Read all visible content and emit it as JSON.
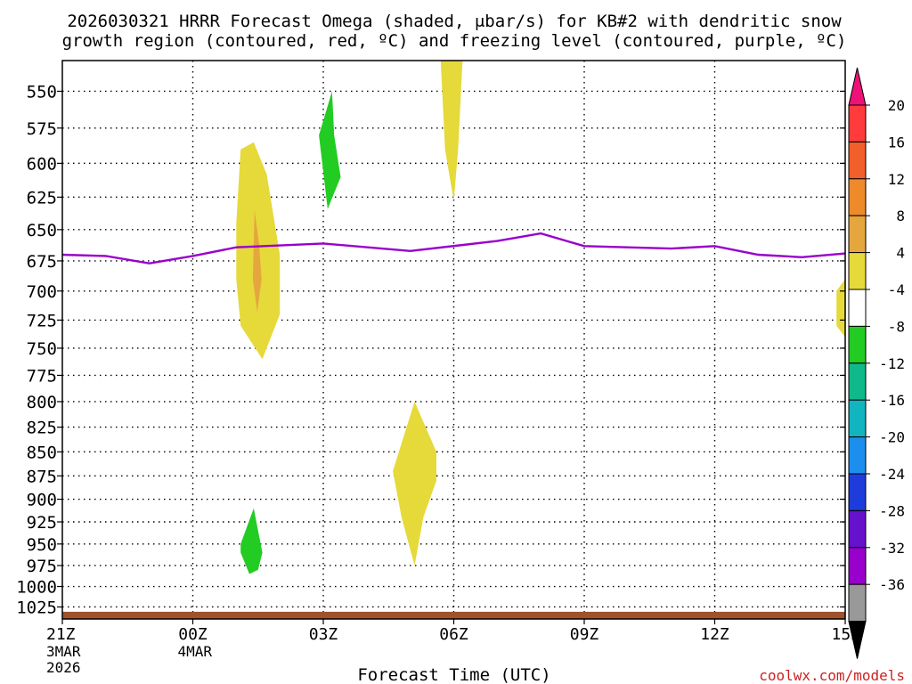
{
  "chart_data": {
    "type": "contour",
    "title_line1": "2026030321 HRRR Forecast Omega (shaded, μbar/s) for KB#2 with dendritic snow",
    "title_line2": "growth region (contoured, red, ºC) and freezing level (contoured, purple, ºC)",
    "xlabel": "Forecast Time (UTC)",
    "watermark": "coolwx.com/models",
    "x_range_hours": [
      0,
      18
    ],
    "y_range_mb": [
      530,
      1040
    ],
    "x_ticks": [
      {
        "hour": 0,
        "label": "21Z",
        "sub1": "3MAR",
        "sub2": "2026"
      },
      {
        "hour": 3,
        "label": "00Z",
        "sub1": "4MAR",
        "sub2": ""
      },
      {
        "hour": 6,
        "label": "03Z",
        "sub1": "",
        "sub2": ""
      },
      {
        "hour": 9,
        "label": "06Z",
        "sub1": "",
        "sub2": ""
      },
      {
        "hour": 12,
        "label": "09Z",
        "sub1": "",
        "sub2": ""
      },
      {
        "hour": 15,
        "label": "12Z",
        "sub1": "",
        "sub2": ""
      },
      {
        "hour": 18,
        "label": "15Z",
        "sub1": "",
        "sub2": ""
      }
    ],
    "y_ticks": [
      {
        "mb": 550,
        "label": "550"
      },
      {
        "mb": 575,
        "label": "575"
      },
      {
        "mb": 600,
        "label": "600"
      },
      {
        "mb": 625,
        "label": "625"
      },
      {
        "mb": 650,
        "label": "650"
      },
      {
        "mb": 675,
        "label": "675"
      },
      {
        "mb": 700,
        "label": "700"
      },
      {
        "mb": 725,
        "label": "725"
      },
      {
        "mb": 750,
        "label": "750"
      },
      {
        "mb": 775,
        "label": "775"
      },
      {
        "mb": 800,
        "label": "800"
      },
      {
        "mb": 825,
        "label": "825"
      },
      {
        "mb": 850,
        "label": "850"
      },
      {
        "mb": 875,
        "label": "875"
      },
      {
        "mb": 900,
        "label": "900"
      },
      {
        "mb": 925,
        "label": "925"
      },
      {
        "mb": 950,
        "label": "950"
      },
      {
        "mb": 975,
        "label": "975"
      },
      {
        "mb": 1000,
        "label": "1000"
      },
      {
        "mb": 1025,
        "label": "1025"
      }
    ],
    "freezing_level": {
      "color": "#9900cc",
      "points": [
        [
          0,
          670
        ],
        [
          1,
          671
        ],
        [
          2,
          677
        ],
        [
          3,
          671
        ],
        [
          4,
          664
        ],
        [
          6,
          661
        ],
        [
          8,
          667
        ],
        [
          10,
          659
        ],
        [
          11,
          653
        ],
        [
          12,
          663
        ],
        [
          13,
          664
        ],
        [
          14,
          665
        ],
        [
          15,
          663
        ],
        [
          16,
          670
        ],
        [
          17,
          672
        ],
        [
          18,
          669
        ]
      ]
    },
    "omega_regions": [
      {
        "name": "omega-plus4-0130z-upper",
        "value_class": "4 to 8",
        "color": "#e6d93a",
        "points": [
          [
            4,
            645
          ],
          [
            4.1,
            590
          ],
          [
            4.4,
            585
          ],
          [
            4.7,
            608
          ],
          [
            5,
            670
          ],
          [
            5,
            720
          ],
          [
            4.6,
            760
          ],
          [
            4.1,
            730
          ],
          [
            4,
            690
          ]
        ]
      },
      {
        "name": "omega-plus8-core",
        "value_class": "8 to 12",
        "color": "#e5a63e",
        "points": [
          [
            4.42,
            635
          ],
          [
            4.52,
            660
          ],
          [
            4.58,
            690
          ],
          [
            4.48,
            718
          ],
          [
            4.38,
            690
          ]
        ]
      },
      {
        "name": "omega-minus4-0400z",
        "value_class": "-8 to -4",
        "color": "#22cc22",
        "points": [
          [
            5.9,
            580
          ],
          [
            6.2,
            550
          ],
          [
            6.25,
            580
          ],
          [
            6.4,
            610
          ],
          [
            6.1,
            634
          ]
        ]
      },
      {
        "name": "omega-plus4-0620z-top",
        "value_class": "4 to 8",
        "color": "#e6d93a",
        "points": [
          [
            8.7,
            530
          ],
          [
            9.2,
            530
          ],
          [
            9.1,
            590
          ],
          [
            9,
            628
          ],
          [
            8.8,
            590
          ]
        ]
      },
      {
        "name": "omega-plus4-0730z-low",
        "value_class": "4 to 8",
        "color": "#e6d93a",
        "points": [
          [
            7.6,
            870
          ],
          [
            8.1,
            800
          ],
          [
            8.6,
            850
          ],
          [
            8.6,
            880
          ],
          [
            8.3,
            920
          ],
          [
            8.1,
            975
          ],
          [
            7.8,
            920
          ]
        ]
      },
      {
        "name": "omega-minus4-0130z-low",
        "value_class": "-8 to -4",
        "color": "#22cc22",
        "points": [
          [
            4.1,
            950
          ],
          [
            4.4,
            910
          ],
          [
            4.6,
            960
          ],
          [
            4.5,
            980
          ],
          [
            4.3,
            985
          ],
          [
            4.1,
            960
          ]
        ]
      },
      {
        "name": "omega-plus4-right-edge",
        "value_class": "4 to 8",
        "color": "#e6d93a",
        "points": [
          [
            17.8,
            700
          ],
          [
            18,
            690
          ],
          [
            18,
            740
          ],
          [
            17.8,
            730
          ]
        ]
      }
    ],
    "surface_band": {
      "color": "#a0522d",
      "top_mb": 1031
    },
    "colorbar": {
      "labels": [
        "20",
        "16",
        "12",
        "8",
        "4",
        "-4",
        "-8",
        "-12",
        "-16",
        "-20",
        "-24",
        "-28",
        "-32",
        "-36"
      ],
      "colors": [
        "#ff3b3b",
        "#f25f2a",
        "#ee8a2a",
        "#e5a63e",
        "#e6d93a",
        "#ffffff",
        "#22cc22",
        "#10b98a",
        "#10b5c0",
        "#1b8eee",
        "#1e3cdc",
        "#6611cc",
        "#9900cc",
        "#999999"
      ],
      "top_triangle_color": "#ee1177",
      "bottom_triangle_color": "#000000"
    }
  }
}
